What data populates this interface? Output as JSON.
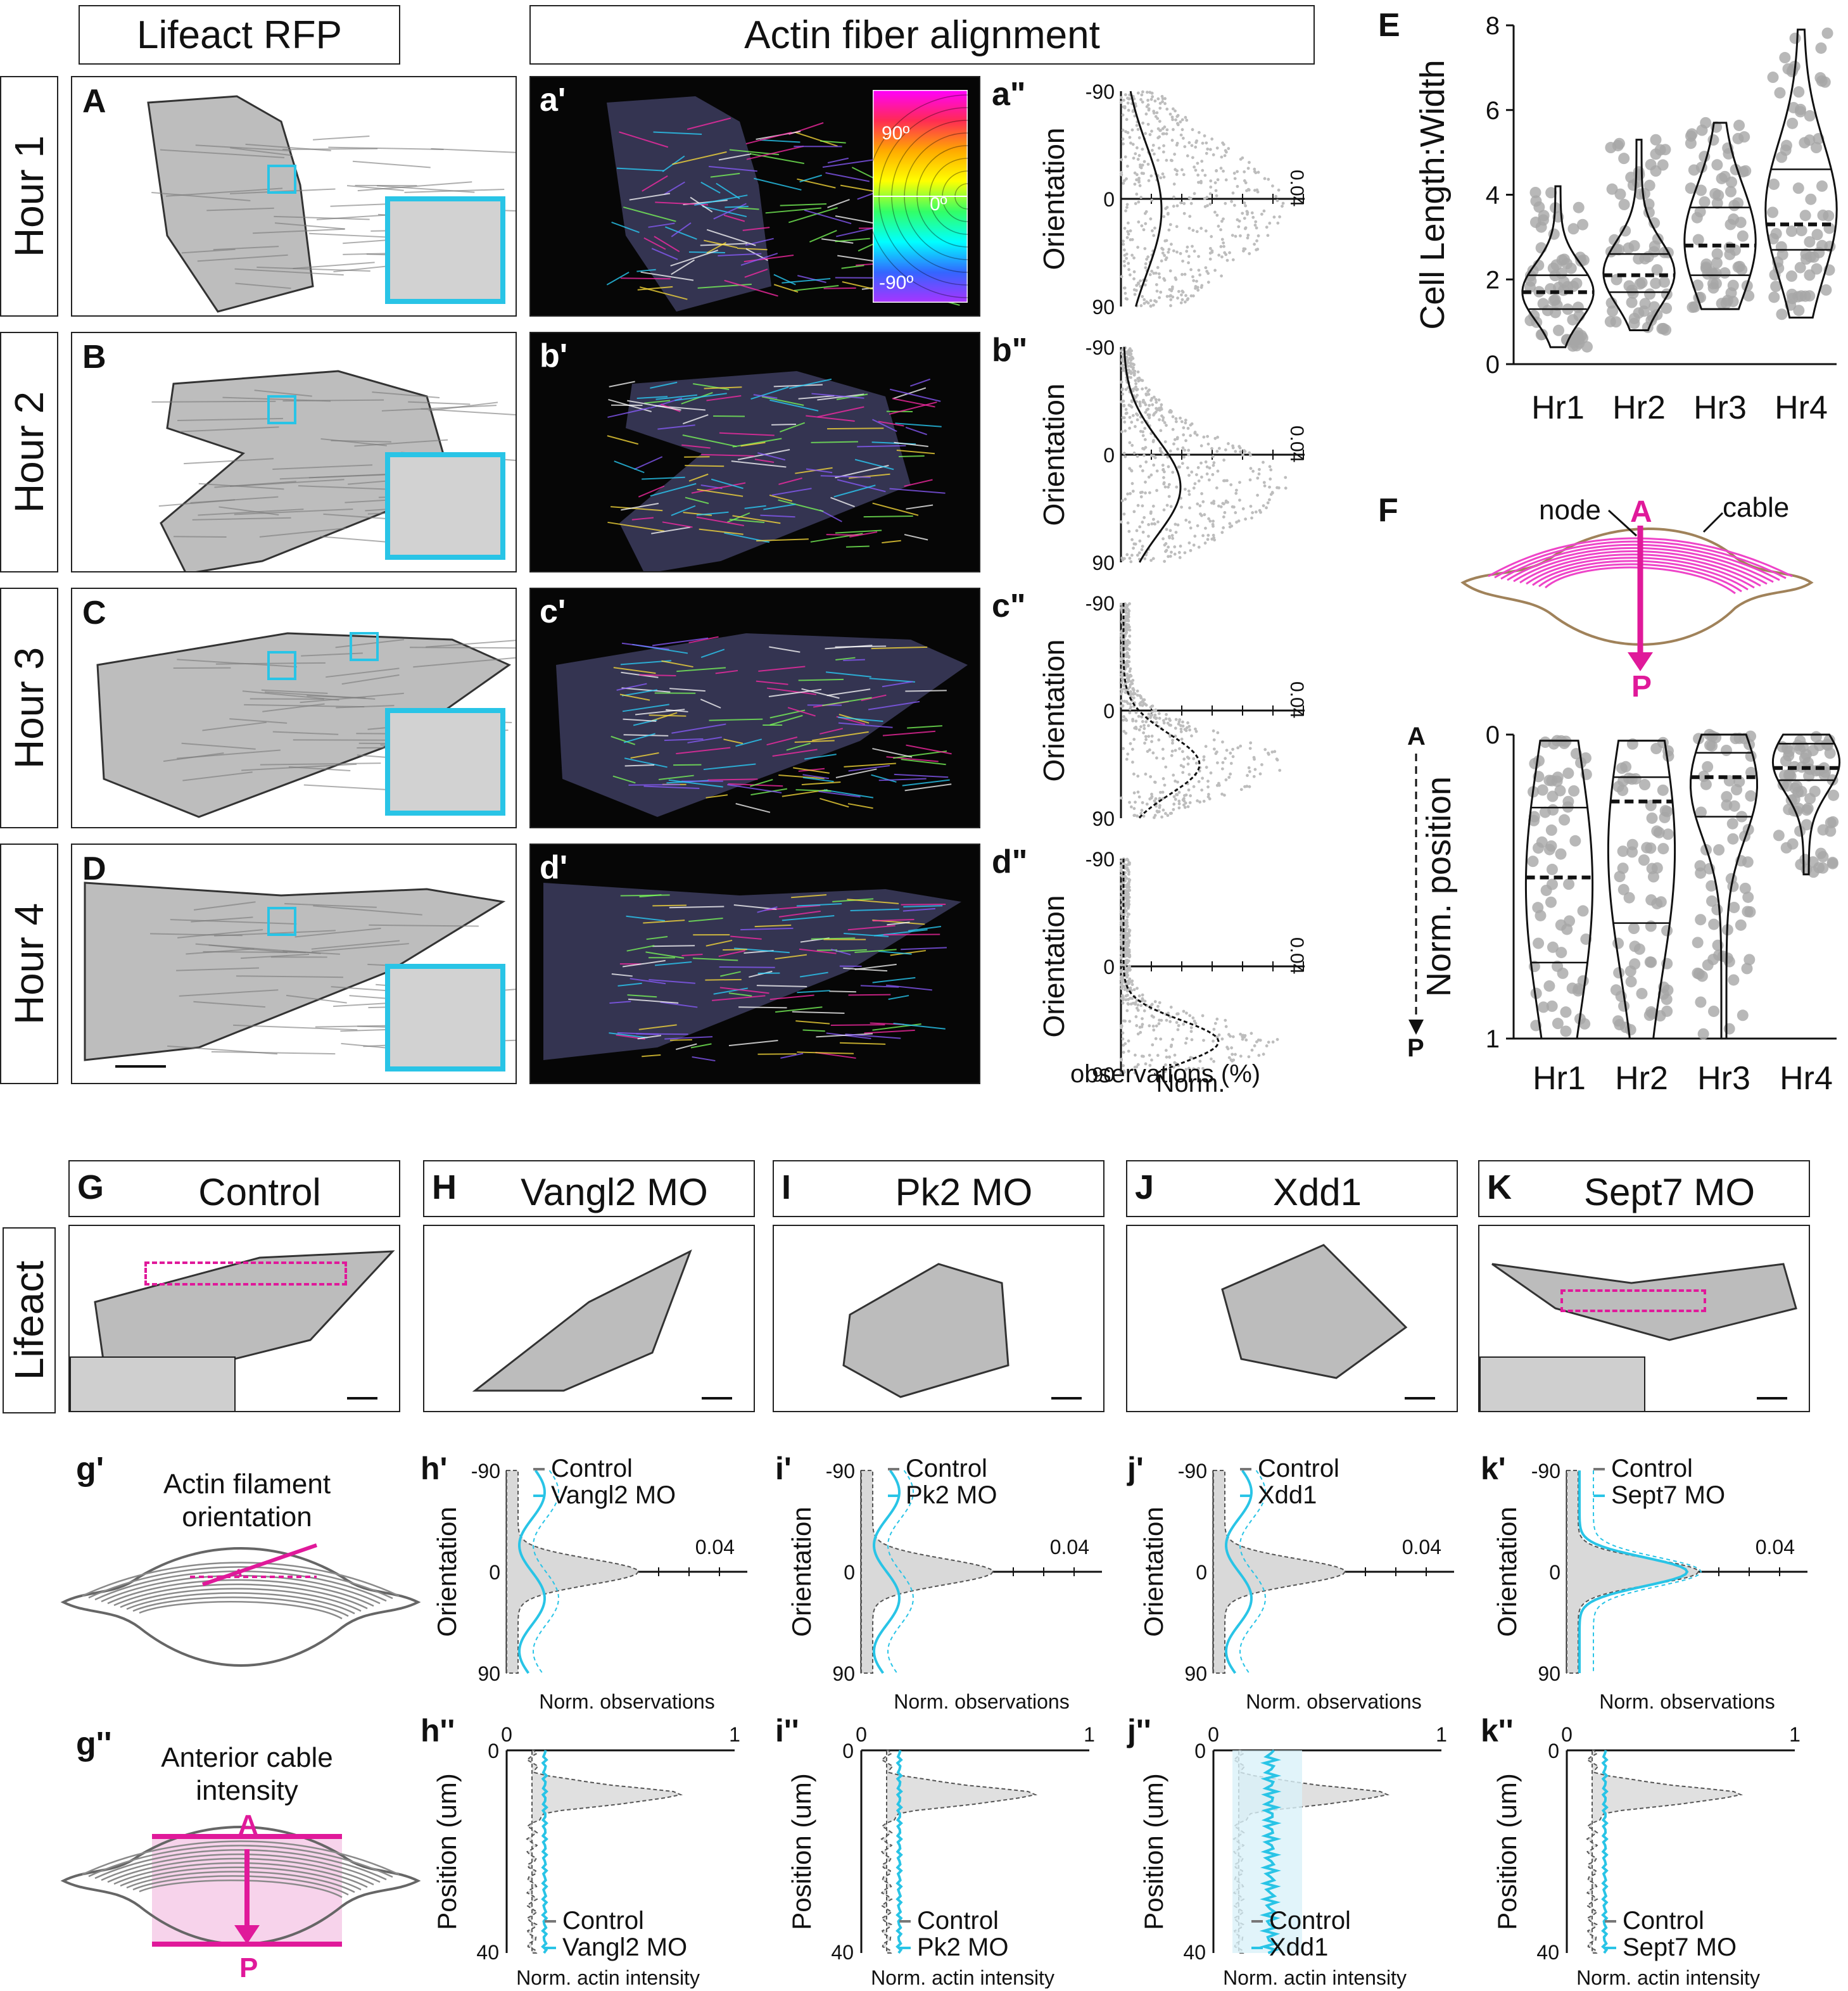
{
  "headers": {
    "lifeact_rfp": "Lifeact RFP",
    "actin_alignment": "Actin fiber alignment"
  },
  "rows": [
    {
      "label": "Hour 1",
      "letter": "A",
      "prime": "a'",
      "dprime": "a\"",
      "peak": 0.55,
      "spread": 0.3
    },
    {
      "label": "Hour 2",
      "letter": "B",
      "prime": "b'",
      "dprime": "b\"",
      "peak": 0.65,
      "spread": 0.22
    },
    {
      "label": "Hour 3",
      "letter": "C",
      "prime": "c'",
      "dprime": "c\"",
      "peak": 0.75,
      "spread": 0.14
    },
    {
      "label": "Hour 4",
      "letter": "D",
      "prime": "d'",
      "dprime": "d\"",
      "peak": 0.85,
      "spread": 0.1
    }
  ],
  "wheel": {
    "top": "90º",
    "mid": "0º",
    "bottom": "-90º"
  },
  "orientation_axis": {
    "label": "Orientation",
    "ticks": [
      "-90",
      "0",
      "90"
    ],
    "max": "0.04",
    "xlabel1": "Norm.",
    "xlabel2": "observations (%)"
  },
  "panel_E": {
    "letter": "E",
    "ylabel": "Cell Length:Width",
    "yticks": [
      "0",
      "2",
      "4",
      "6",
      "8"
    ],
    "categories": [
      "Hr1",
      "Hr2",
      "Hr3",
      "Hr4"
    ]
  },
  "panel_F": {
    "letter": "F",
    "node": "node",
    "cable": "cable",
    "A": "A",
    "P": "P",
    "ylabel": "Norm. position",
    "yticks": [
      "0",
      "1"
    ],
    "categories": [
      "Hr1",
      "Hr2",
      "Hr3",
      "Hr4"
    ]
  },
  "treatments": [
    {
      "letter": "G",
      "title": "Control"
    },
    {
      "letter": "H",
      "title": "Vangl2 MO"
    },
    {
      "letter": "I",
      "title": "Pk2 MO"
    },
    {
      "letter": "J",
      "title": "Xdd1"
    },
    {
      "letter": "K",
      "title": "Sept7 MO"
    }
  ],
  "lifeact_label": "Lifeact",
  "g_prime": {
    "letter": "g'",
    "title1": "Actin filament",
    "title2": "orientation"
  },
  "g_dprime": {
    "letter": "g''",
    "title1": "Anterior cable",
    "title2": "intensity",
    "A": "A",
    "P": "P"
  },
  "orientation_plots": [
    {
      "letter": "h'",
      "legend": [
        "Control",
        "Vangl2 MO"
      ]
    },
    {
      "letter": "i'",
      "legend": [
        "Control",
        "Pk2 MO"
      ]
    },
    {
      "letter": "j'",
      "legend": [
        "Control",
        "Xdd1"
      ]
    },
    {
      "letter": "k'",
      "legend": [
        "Control",
        "Sept7 MO"
      ]
    }
  ],
  "orientation_small": {
    "ylabel": "Orientation",
    "ticks": [
      "-90",
      "0",
      "90"
    ],
    "max": "0.04",
    "xlabel": "Norm. observations"
  },
  "intensity_plots": [
    {
      "letter": "h''",
      "legend": [
        "Control",
        "Vangl2 MO"
      ]
    },
    {
      "letter": "i''",
      "legend": [
        "Control",
        "Pk2 MO"
      ]
    },
    {
      "letter": "j''",
      "legend": [
        "Control",
        "Xdd1"
      ]
    },
    {
      "letter": "k''",
      "legend": [
        "Control",
        "Sept7 MO"
      ]
    }
  ],
  "intensity_small": {
    "ylabel": "Position (um)",
    "yticks": [
      "0",
      "40"
    ],
    "xticks": [
      "0",
      "1"
    ],
    "xlabel": "Norm. actin intensity"
  },
  "colors": {
    "cyan": "#29c4e6",
    "magenta": "#e0199a",
    "grey": "#aaaaaa"
  },
  "chart_data": [
    {
      "type": "violin",
      "title": "",
      "ylabel": "Cell Length:Width",
      "ylim": [
        0,
        8
      ],
      "categories": [
        "Hr1",
        "Hr2",
        "Hr3",
        "Hr4"
      ],
      "medians": [
        1.7,
        2.1,
        2.8,
        3.3
      ],
      "q1": [
        1.3,
        1.7,
        2.1,
        2.7
      ],
      "q3": [
        2.1,
        2.6,
        3.7,
        4.6
      ],
      "min": [
        0.4,
        0.8,
        1.3,
        1.1
      ],
      "max": [
        4.2,
        5.3,
        5.7,
        7.9
      ]
    },
    {
      "type": "violin",
      "title": "",
      "ylabel": "Norm. position",
      "ylim": [
        0,
        1
      ],
      "categories": [
        "Hr1",
        "Hr2",
        "Hr3",
        "Hr4"
      ],
      "medians": [
        0.47,
        0.22,
        0.14,
        0.11
      ],
      "q1": [
        0.24,
        0.14,
        0.06,
        0.03
      ],
      "q3": [
        0.75,
        0.62,
        0.27,
        0.15
      ],
      "min": [
        0.02,
        0.02,
        0.0,
        0.0
      ],
      "max": [
        1.0,
        1.0,
        1.0,
        0.46
      ]
    }
  ]
}
